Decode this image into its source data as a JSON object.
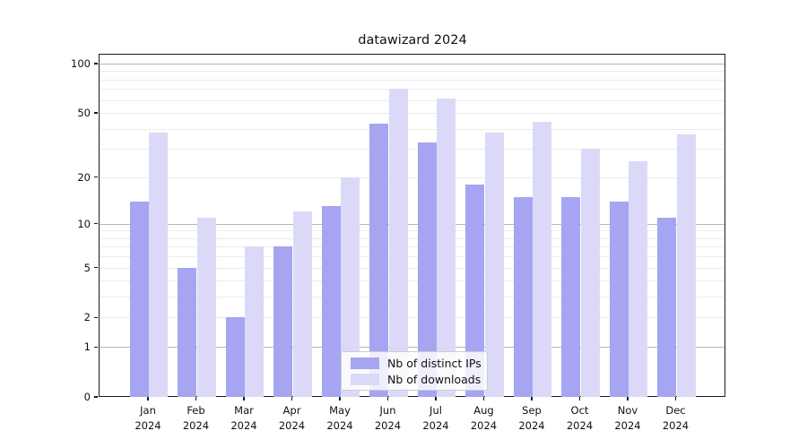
{
  "title": "datawizard 2024",
  "chart_data": {
    "type": "bar",
    "title": "datawizard 2024",
    "categories": [
      "Jan",
      "Feb",
      "Mar",
      "Apr",
      "May",
      "Jun",
      "Jul",
      "Aug",
      "Sep",
      "Oct",
      "Nov",
      "Dec"
    ],
    "category_year": "2024",
    "series": [
      {
        "name": "Nb of distinct IPs",
        "color": "#a5a5f1",
        "values": [
          14,
          5,
          2,
          7,
          13,
          43,
          33,
          18,
          15,
          15,
          14,
          11
        ]
      },
      {
        "name": "Nb of downloads",
        "color": "#dadaf8",
        "values": [
          38,
          11,
          7,
          12,
          20,
          70,
          61,
          38,
          44,
          30,
          25,
          37
        ]
      }
    ],
    "y_scale": "log1p",
    "y_ticks": [
      0,
      1,
      2,
      5,
      10,
      20,
      50,
      100
    ],
    "gridlines": {
      "major": [
        1,
        10,
        100
      ],
      "minor": [
        2,
        3,
        4,
        5,
        6,
        7,
        8,
        9,
        20,
        30,
        40,
        50,
        60,
        70,
        80,
        90
      ]
    },
    "ylim": [
      0,
      115
    ],
    "grid": "horizontal",
    "legend_position": "lower center"
  }
}
